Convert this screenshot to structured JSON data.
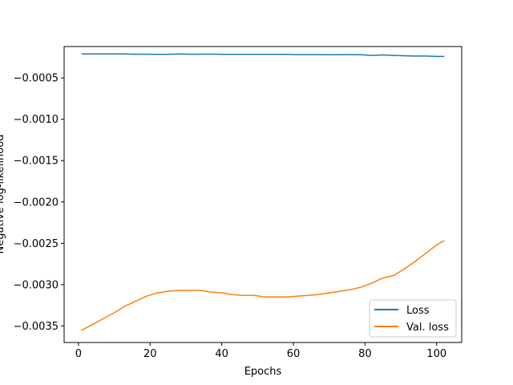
{
  "chart_data": {
    "type": "line",
    "title": "",
    "xlabel": "Epochs",
    "ylabel": "Negative log-likelihood",
    "xlim": [
      -4,
      107
    ],
    "ylim": [
      -0.0037,
      -0.00012
    ],
    "xticks": [
      0,
      20,
      40,
      60,
      80,
      100
    ],
    "xtick_labels": [
      "0",
      "20",
      "40",
      "60",
      "80",
      "100"
    ],
    "yticks": [
      -0.0005,
      -0.001,
      -0.0015,
      -0.002,
      -0.0025,
      -0.003,
      -0.0035
    ],
    "ytick_labels": [
      "−0.0005",
      "−0.0010",
      "−0.0015",
      "−0.0020",
      "−0.0025",
      "−0.0030",
      "−0.0035"
    ],
    "grid": false,
    "legend_position": "lower-right",
    "series": [
      {
        "name": "Loss",
        "color": "#1f77b4",
        "x": [
          1,
          4,
          7,
          10,
          13,
          16,
          19,
          22,
          25,
          28,
          31,
          34,
          37,
          40,
          43,
          46,
          49,
          52,
          55,
          58,
          61,
          64,
          67,
          70,
          73,
          76,
          79,
          82,
          85,
          88,
          91,
          94,
          97,
          100,
          102
        ],
        "y": [
          -0.00021,
          -0.00021,
          -0.00021,
          -0.00021,
          -0.00021,
          -0.000213,
          -0.000213,
          -0.000215,
          -0.000215,
          -0.00021,
          -0.000213,
          -0.000213,
          -0.000212,
          -0.000215,
          -0.000215,
          -0.000215,
          -0.000215,
          -0.000215,
          -0.000215,
          -0.000215,
          -0.000218,
          -0.000218,
          -0.000218,
          -0.00022,
          -0.000218,
          -0.000218,
          -0.00022,
          -0.000228,
          -0.000222,
          -0.000228,
          -0.000232,
          -0.000235,
          -0.000235,
          -0.00024,
          -0.00024
        ]
      },
      {
        "name": "Val. loss",
        "color": "#ff7f0e",
        "x": [
          1,
          4,
          7,
          10,
          13,
          16,
          19,
          22,
          25,
          28,
          31,
          34,
          37,
          40,
          43,
          46,
          49,
          52,
          55,
          58,
          61,
          64,
          67,
          70,
          73,
          76,
          79,
          82,
          85,
          88,
          91,
          94,
          97,
          100,
          102
        ],
        "y": [
          -0.00355,
          -0.00348,
          -0.00341,
          -0.00334,
          -0.00326,
          -0.0032,
          -0.00314,
          -0.0031,
          -0.00308,
          -0.00307,
          -0.00307,
          -0.00307,
          -0.00309,
          -0.0031,
          -0.00312,
          -0.00313,
          -0.00313,
          -0.00315,
          -0.00315,
          -0.00315,
          -0.00314,
          -0.00313,
          -0.00312,
          -0.0031,
          -0.00308,
          -0.00306,
          -0.00303,
          -0.00298,
          -0.00292,
          -0.00289,
          -0.00281,
          -0.00272,
          -0.00262,
          -0.00252,
          -0.00247
        ]
      }
    ]
  }
}
